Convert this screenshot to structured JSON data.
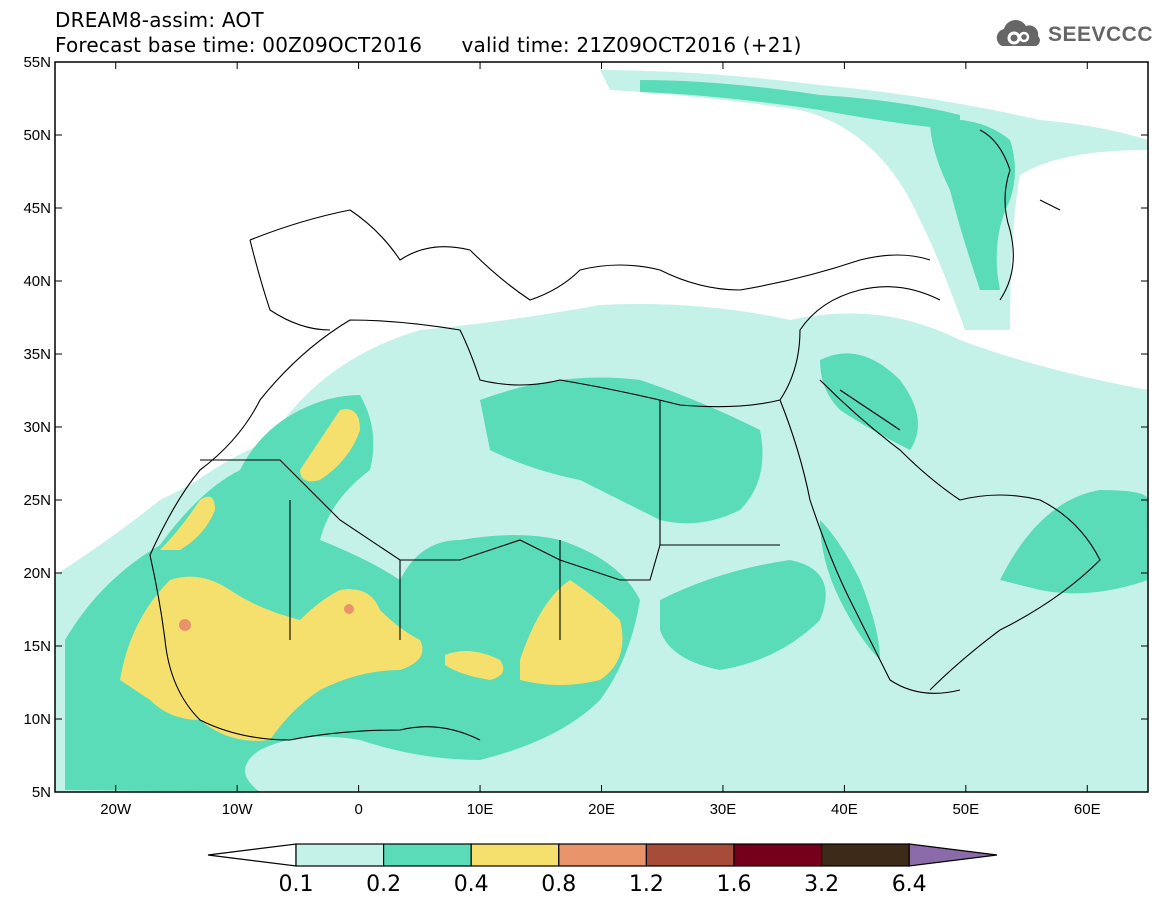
{
  "title": {
    "line1": "DREAM8-assim: AOT",
    "line2_base": "Forecast base time: 00Z09OCT2016",
    "line2_valid": "valid time: 21Z09OCT2016 (+21)"
  },
  "logo": {
    "text": "SEEVCCC",
    "icon": "cloud-icon",
    "color": "#666666"
  },
  "map": {
    "projection": "lat-lon",
    "lon_range": [
      -25,
      65
    ],
    "lat_range": [
      5,
      55
    ],
    "lat_ticks": [
      {
        "value": 55,
        "label": "55N"
      },
      {
        "value": 50,
        "label": "50N"
      },
      {
        "value": 45,
        "label": "45N"
      },
      {
        "value": 40,
        "label": "40N"
      },
      {
        "value": 35,
        "label": "35N"
      },
      {
        "value": 30,
        "label": "30N"
      },
      {
        "value": 25,
        "label": "25N"
      },
      {
        "value": 20,
        "label": "20N"
      },
      {
        "value": 15,
        "label": "15N"
      },
      {
        "value": 10,
        "label": "10N"
      },
      {
        "value": 5,
        "label": "5N"
      }
    ],
    "lon_ticks": [
      {
        "value": -20,
        "label": "20W"
      },
      {
        "value": -10,
        "label": "10W"
      },
      {
        "value": 0,
        "label": "0"
      },
      {
        "value": 10,
        "label": "10E"
      },
      {
        "value": 20,
        "label": "20E"
      },
      {
        "value": 30,
        "label": "30E"
      },
      {
        "value": 40,
        "label": "40E"
      },
      {
        "value": 50,
        "label": "50E"
      },
      {
        "value": 60,
        "label": "60E"
      }
    ]
  },
  "colorbar": {
    "bins": [
      {
        "color": "#ffffff"
      },
      {
        "color": "#c5f2e8"
      },
      {
        "color": "#5adcb8"
      },
      {
        "color": "#f5e06e"
      },
      {
        "color": "#e8936a"
      },
      {
        "color": "#a84c3a"
      },
      {
        "color": "#76001c"
      },
      {
        "color": "#3e2a18"
      },
      {
        "color": "#8a6aa8"
      }
    ],
    "labels": [
      "0.1",
      "0.2",
      "0.4",
      "0.8",
      "1.2",
      "1.6",
      "3.2",
      "6.4"
    ]
  },
  "chart_data": {
    "type": "heatmap",
    "variable": "AOT",
    "levels": [
      0.1,
      0.2,
      0.4,
      0.8,
      1.2,
      1.6,
      3.2,
      6.4
    ],
    "colors": [
      "#ffffff",
      "#c5f2e8",
      "#5adcb8",
      "#f5e06e",
      "#e8936a",
      "#a84c3a",
      "#76001c",
      "#3e2a18",
      "#8a6aa8"
    ]
  }
}
